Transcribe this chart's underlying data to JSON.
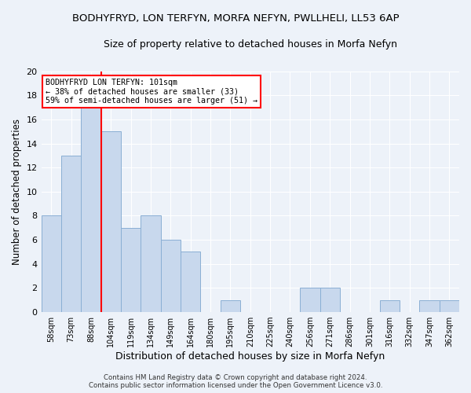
{
  "title": "BODHYFRYD, LON TERFYN, MORFA NEFYN, PWLLHELI, LL53 6AP",
  "subtitle": "Size of property relative to detached houses in Morfa Nefyn",
  "xlabel": "Distribution of detached houses by size in Morfa Nefyn",
  "ylabel": "Number of detached properties",
  "categories": [
    "58sqm",
    "73sqm",
    "88sqm",
    "104sqm",
    "119sqm",
    "134sqm",
    "149sqm",
    "164sqm",
    "180sqm",
    "195sqm",
    "210sqm",
    "225sqm",
    "240sqm",
    "256sqm",
    "271sqm",
    "286sqm",
    "301sqm",
    "316sqm",
    "332sqm",
    "347sqm",
    "362sqm"
  ],
  "values": [
    8,
    13,
    17,
    15,
    7,
    8,
    6,
    5,
    0,
    1,
    0,
    0,
    0,
    2,
    2,
    0,
    0,
    1,
    0,
    1,
    1
  ],
  "bar_color": "#c8d8ed",
  "bar_edge_color": "#8aafd4",
  "vline_color": "red",
  "vline_x_index": 2.5,
  "annotation_title": "BODHYFRYD LON TERFYN: 101sqm",
  "annotation_line1": "← 38% of detached houses are smaller (33)",
  "annotation_line2": "59% of semi-detached houses are larger (51) →",
  "annotation_box_color": "white",
  "annotation_box_edge_color": "red",
  "ylim": [
    0,
    20
  ],
  "yticks": [
    0,
    2,
    4,
    6,
    8,
    10,
    12,
    14,
    16,
    18,
    20
  ],
  "title_fontsize": 9.5,
  "subtitle_fontsize": 9,
  "xlabel_fontsize": 9,
  "ylabel_fontsize": 8.5,
  "footer_line1": "Contains HM Land Registry data © Crown copyright and database right 2024.",
  "footer_line2": "Contains public sector information licensed under the Open Government Licence v3.0.",
  "background_color": "#edf2f9",
  "grid_color": "#ffffff"
}
